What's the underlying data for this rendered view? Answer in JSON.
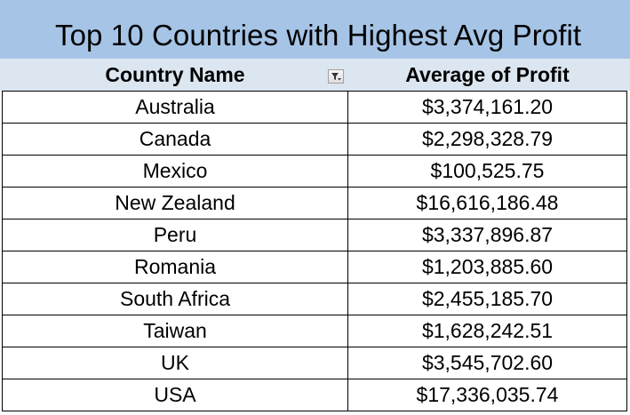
{
  "title": "Top 10 Countries with Highest Avg Profit",
  "headers": {
    "country": "Country Name",
    "average": "Average of Profit"
  },
  "filter_icon": "filter-dropdown-icon",
  "rows": [
    {
      "country": "Australia",
      "average": "$3,374,161.20"
    },
    {
      "country": "Canada",
      "average": "$2,298,328.79"
    },
    {
      "country": "Mexico",
      "average": "$100,525.75"
    },
    {
      "country": "New Zealand",
      "average": "$16,616,186.48"
    },
    {
      "country": "Peru",
      "average": "$3,337,896.87"
    },
    {
      "country": "Romania",
      "average": "$1,203,885.60"
    },
    {
      "country": "South Africa",
      "average": "$2,455,185.70"
    },
    {
      "country": "Taiwan",
      "average": "$1,628,242.51"
    },
    {
      "country": "UK",
      "average": "$3,545,702.60"
    },
    {
      "country": "USA",
      "average": "$17,336,035.74"
    }
  ]
}
